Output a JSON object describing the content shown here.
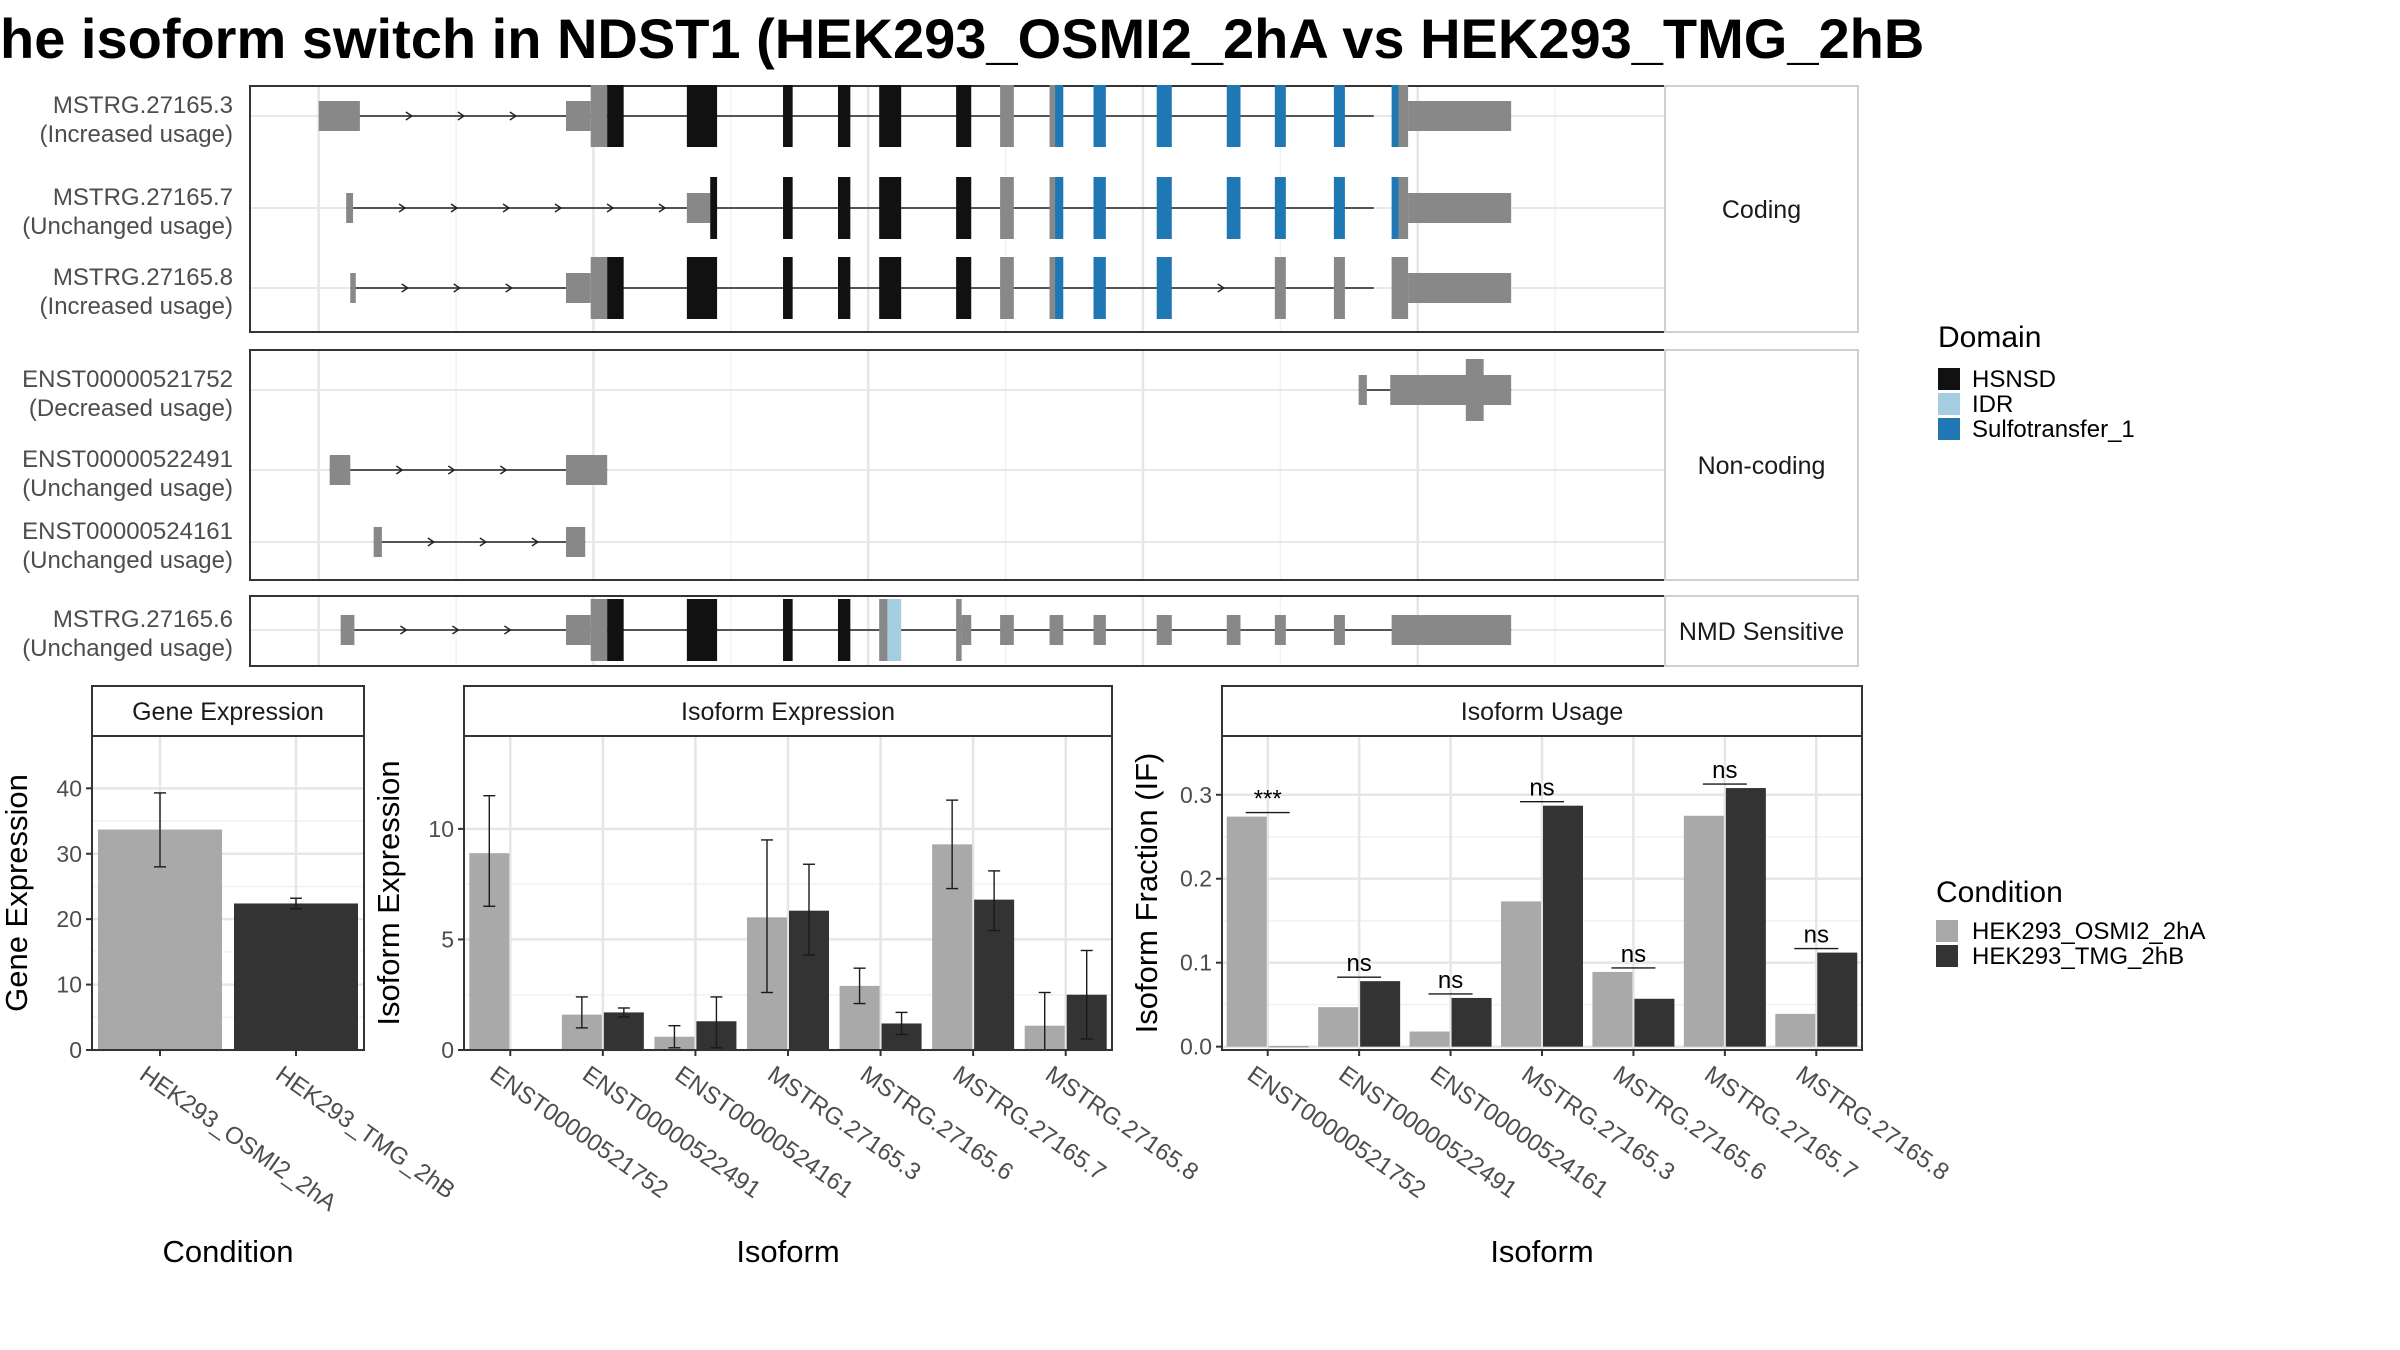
{
  "title": "he isoform switch in NDST1 (HEK293_OSMI2_2hA vs HEK293_TMG_2hB",
  "colors": {
    "exon_grey": "#888888",
    "HSNSD": "#111111",
    "IDR": "#a6cee3",
    "Sulfotransfer_1": "#1f78b4",
    "cond_a": "#a9a9a9",
    "cond_b": "#333333"
  },
  "structure": {
    "facets": [
      {
        "label": "Coding",
        "rows": [
          {
            "id": "MSTRG.27165.3",
            "usage": "(Increased usage)",
            "line": [
              200,
              968
            ],
            "exons": [
              [
                200,
                230,
                "utr"
              ],
              [
                380,
                398,
                "utr"
              ],
              [
                398,
                410,
                "cds"
              ],
              [
                410,
                422,
                "HSNSD"
              ],
              [
                468,
                490,
                "HSNSD"
              ],
              [
                538,
                545,
                "HSNSD"
              ],
              [
                578,
                587,
                "HSNSD"
              ],
              [
                608,
                624,
                "HSNSD"
              ],
              [
                664,
                675,
                "HSNSD"
              ],
              [
                696,
                706,
                "cds"
              ],
              [
                732,
                736,
                "cds"
              ],
              [
                736,
                742,
                "Sulfotransfer_1"
              ],
              [
                764,
                773,
                "Sulfotransfer_1"
              ],
              [
                810,
                821,
                "Sulfotransfer_1"
              ],
              [
                861,
                871,
                "Sulfotransfer_1"
              ],
              [
                896,
                904,
                "Sulfotransfer_1"
              ],
              [
                939,
                947,
                "Sulfotransfer_1"
              ],
              [
                981,
                986,
                "Sulfotransfer_1"
              ],
              [
                986,
                993,
                "cds"
              ],
              [
                993,
                1068,
                "utr"
              ]
            ]
          },
          {
            "id": "MSTRG.27165.7",
            "usage": "(Unchanged usage)",
            "line": [
              220,
              968
            ],
            "exons": [
              [
                220,
                225,
                "utr"
              ],
              [
                468,
                485,
                "utr"
              ],
              [
                485,
                490,
                "HSNSD"
              ],
              [
                538,
                545,
                "HSNSD"
              ],
              [
                578,
                587,
                "HSNSD"
              ],
              [
                608,
                624,
                "HSNSD"
              ],
              [
                664,
                675,
                "HSNSD"
              ],
              [
                696,
                706,
                "cds"
              ],
              [
                732,
                736,
                "cds"
              ],
              [
                736,
                742,
                "Sulfotransfer_1"
              ],
              [
                764,
                773,
                "Sulfotransfer_1"
              ],
              [
                810,
                821,
                "Sulfotransfer_1"
              ],
              [
                861,
                871,
                "Sulfotransfer_1"
              ],
              [
                896,
                904,
                "Sulfotransfer_1"
              ],
              [
                939,
                947,
                "Sulfotransfer_1"
              ],
              [
                981,
                986,
                "Sulfotransfer_1"
              ],
              [
                986,
                993,
                "cds"
              ],
              [
                993,
                1068,
                "utr"
              ]
            ]
          },
          {
            "id": "MSTRG.27165.8",
            "usage": "(Increased usage)",
            "line": [
              223,
              968
            ],
            "exons": [
              [
                223,
                227,
                "utr"
              ],
              [
                380,
                398,
                "utr"
              ],
              [
                398,
                410,
                "cds"
              ],
              [
                410,
                422,
                "HSNSD"
              ],
              [
                468,
                490,
                "HSNSD"
              ],
              [
                538,
                545,
                "HSNSD"
              ],
              [
                578,
                587,
                "HSNSD"
              ],
              [
                608,
                624,
                "HSNSD"
              ],
              [
                664,
                675,
                "HSNSD"
              ],
              [
                696,
                706,
                "cds"
              ],
              [
                732,
                736,
                "cds"
              ],
              [
                736,
                742,
                "Sulfotransfer_1"
              ],
              [
                764,
                773,
                "Sulfotransfer_1"
              ],
              [
                810,
                821,
                "Sulfotransfer_1"
              ],
              [
                896,
                904,
                "cds"
              ],
              [
                939,
                947,
                "cds"
              ],
              [
                981,
                993,
                "cds"
              ],
              [
                993,
                1068,
                "utr"
              ]
            ]
          }
        ]
      },
      {
        "label": "Non-coding",
        "rows": [
          {
            "id": "ENST00000521752",
            "usage": "(Decreased usage)",
            "line": [
              957,
              1068
            ],
            "exons": [
              [
                957,
                963,
                "utr"
              ],
              [
                980,
                1068,
                "utr"
              ],
              [
                1035,
                1048,
                "utr_tall"
              ]
            ]
          },
          {
            "id": "ENST00000522491",
            "usage": "(Unchanged usage)",
            "line": [
              208,
              410
            ],
            "exons": [
              [
                208,
                223,
                "utr"
              ],
              [
                380,
                410,
                "utr"
              ]
            ]
          },
          {
            "id": "ENST00000524161",
            "usage": "(Unchanged usage)",
            "line": [
              240,
              394
            ],
            "exons": [
              [
                240,
                246,
                "utr"
              ],
              [
                380,
                394,
                "utr"
              ]
            ]
          }
        ]
      },
      {
        "label": "NMD Sensitive",
        "rows": [
          {
            "id": "MSTRG.27165.6",
            "usage": "(Unchanged usage)",
            "line": [
              216,
              1068
            ],
            "exons": [
              [
                216,
                226,
                "utr"
              ],
              [
                380,
                398,
                "utr"
              ],
              [
                398,
                410,
                "cds"
              ],
              [
                410,
                422,
                "HSNSD"
              ],
              [
                468,
                490,
                "HSNSD"
              ],
              [
                538,
                545,
                "HSNSD"
              ],
              [
                578,
                587,
                "HSNSD"
              ],
              [
                608,
                614,
                "cds"
              ],
              [
                614,
                624,
                "IDR"
              ],
              [
                664,
                668,
                "cds"
              ],
              [
                668,
                675,
                "utr"
              ],
              [
                696,
                706,
                "utr"
              ],
              [
                732,
                742,
                "utr"
              ],
              [
                764,
                773,
                "utr"
              ],
              [
                810,
                821,
                "utr"
              ],
              [
                861,
                871,
                "utr"
              ],
              [
                896,
                904,
                "utr"
              ],
              [
                939,
                947,
                "utr"
              ],
              [
                981,
                1068,
                "utr"
              ]
            ]
          }
        ]
      }
    ]
  },
  "domain_legend": {
    "title": "Domain",
    "items": [
      {
        "label": "HSNSD",
        "color": "#111111"
      },
      {
        "label": "IDR",
        "color": "#a6cee3"
      },
      {
        "label": "Sulfotransfer_1",
        "color": "#1f78b4"
      }
    ]
  },
  "condition_legend": {
    "title": "Condition",
    "items": [
      {
        "label": "HEK293_OSMI2_2hA",
        "color": "#a9a9a9"
      },
      {
        "label": "HEK293_TMG_2hB",
        "color": "#333333"
      }
    ]
  },
  "chart_data": [
    {
      "type": "bar",
      "title": "Gene Expression",
      "xlabel": "Condition",
      "ylabel": "Gene Expression",
      "ylim": [
        0,
        48
      ],
      "yticks": [
        0,
        10,
        20,
        30,
        40
      ],
      "categories": [
        "HEK293_OSMI2_2hA",
        "HEK293_TMG_2hB"
      ],
      "series": [
        {
          "name": "HEK293_OSMI2_2hA",
          "values": [
            33.7,
            null
          ],
          "err": [
            [
              28.0,
              39.3
            ],
            null
          ]
        },
        {
          "name": "HEK293_TMG_2hB",
          "values": [
            null,
            22.4
          ],
          "err": [
            null,
            [
              21.6,
              23.2
            ]
          ]
        }
      ]
    },
    {
      "type": "bar",
      "title": "Isoform Expression",
      "xlabel": "Isoform",
      "ylabel": "Isoform Expression",
      "ylim": [
        0,
        14.2
      ],
      "yticks": [
        0,
        5,
        10
      ],
      "categories": [
        "ENST00000521752",
        "ENST00000522491",
        "ENST00000524161",
        "MSTRG.27165.3",
        "MSTRG.27165.6",
        "MSTRG.27165.7",
        "MSTRG.27165.8"
      ],
      "series": [
        {
          "name": "HEK293_OSMI2_2hA",
          "values": [
            8.9,
            1.6,
            0.6,
            6.0,
            2.9,
            9.3,
            1.1
          ],
          "err": [
            [
              6.5,
              11.5
            ],
            [
              1.0,
              2.4
            ],
            [
              0.1,
              1.1
            ],
            [
              2.6,
              9.5
            ],
            [
              2.1,
              3.7
            ],
            [
              7.3,
              11.3
            ],
            [
              0.0,
              2.6
            ]
          ]
        },
        {
          "name": "HEK293_TMG_2hB",
          "values": [
            0.0,
            1.7,
            1.3,
            6.3,
            1.2,
            6.8,
            2.5
          ],
          "err": [
            [
              0.0,
              0.0
            ],
            [
              1.5,
              1.9
            ],
            [
              0.1,
              2.4
            ],
            [
              4.3,
              8.4
            ],
            [
              0.7,
              1.7
            ],
            [
              5.4,
              8.1
            ],
            [
              0.5,
              4.5
            ]
          ]
        }
      ]
    },
    {
      "type": "bar",
      "title": "Isoform Usage",
      "xlabel": "Isoform",
      "ylabel": "Isoform Fraction (IF)",
      "ylim": [
        -0.004,
        0.37
      ],
      "yticks": [
        0.0,
        0.1,
        0.2,
        0.3
      ],
      "categories": [
        "ENST00000521752",
        "ENST00000522491",
        "ENST00000524161",
        "MSTRG.27165.3",
        "MSTRG.27165.6",
        "MSTRG.27165.7",
        "MSTRG.27165.8"
      ],
      "series": [
        {
          "name": "HEK293_OSMI2_2hA",
          "values": [
            0.274,
            0.047,
            0.018,
            0.173,
            0.089,
            0.275,
            0.039
          ]
        },
        {
          "name": "HEK293_TMG_2hB",
          "values": [
            0.0,
            0.078,
            0.058,
            0.287,
            0.057,
            0.308,
            0.112
          ]
        }
      ],
      "significance": [
        "***",
        "ns",
        "ns",
        "ns",
        "ns",
        "ns",
        "ns"
      ]
    }
  ]
}
